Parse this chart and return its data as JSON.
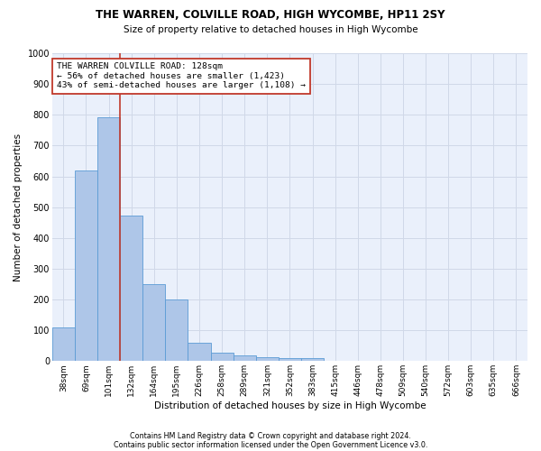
{
  "title1": "THE WARREN, COLVILLE ROAD, HIGH WYCOMBE, HP11 2SY",
  "title2": "Size of property relative to detached houses in High Wycombe",
  "xlabel": "Distribution of detached houses by size in High Wycombe",
  "ylabel": "Number of detached properties",
  "footnote1": "Contains HM Land Registry data © Crown copyright and database right 2024.",
  "footnote2": "Contains public sector information licensed under the Open Government Licence v3.0.",
  "bar_labels": [
    "38sqm",
    "69sqm",
    "101sqm",
    "132sqm",
    "164sqm",
    "195sqm",
    "226sqm",
    "258sqm",
    "289sqm",
    "321sqm",
    "352sqm",
    "383sqm",
    "415sqm",
    "446sqm",
    "478sqm",
    "509sqm",
    "540sqm",
    "572sqm",
    "603sqm",
    "635sqm",
    "666sqm"
  ],
  "bar_values": [
    110,
    620,
    793,
    472,
    250,
    200,
    60,
    27,
    17,
    12,
    10,
    10,
    0,
    0,
    0,
    0,
    0,
    0,
    0,
    0,
    0
  ],
  "bar_color": "#aec6e8",
  "bar_edge_color": "#5b9bd5",
  "ylim": [
    0,
    1000
  ],
  "yticks": [
    0,
    100,
    200,
    300,
    400,
    500,
    600,
    700,
    800,
    900,
    1000
  ],
  "vline_x_index": 2.5,
  "vline_color": "#c0392b",
  "annotation_text": "THE WARREN COLVILLE ROAD: 128sqm\n← 56% of detached houses are smaller (1,423)\n43% of semi-detached houses are larger (1,108) →",
  "annotation_box_color": "#ffffff",
  "annotation_box_edge": "#c0392b",
  "grid_color": "#d0d8e8",
  "background_color": "#eaf0fb"
}
